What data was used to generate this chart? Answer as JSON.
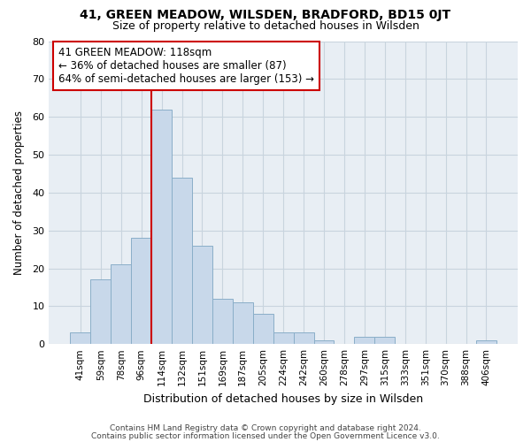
{
  "title1": "41, GREEN MEADOW, WILSDEN, BRADFORD, BD15 0JT",
  "title2": "Size of property relative to detached houses in Wilsden",
  "xlabel": "Distribution of detached houses by size in Wilsden",
  "ylabel": "Number of detached properties",
  "bin_labels": [
    "41sqm",
    "59sqm",
    "78sqm",
    "96sqm",
    "114sqm",
    "132sqm",
    "151sqm",
    "169sqm",
    "187sqm",
    "205sqm",
    "224sqm",
    "242sqm",
    "260sqm",
    "278sqm",
    "297sqm",
    "315sqm",
    "333sqm",
    "351sqm",
    "370sqm",
    "388sqm",
    "406sqm"
  ],
  "bar_values": [
    3,
    17,
    21,
    28,
    62,
    44,
    26,
    12,
    11,
    8,
    3,
    3,
    1,
    0,
    2,
    2,
    0,
    0,
    0,
    0,
    1
  ],
  "bar_color": "#c8d8ea",
  "bar_edge_color": "#8aaec8",
  "vline_x_index": 4,
  "vline_color": "#cc0000",
  "annotation_text": "41 GREEN MEADOW: 118sqm\n← 36% of detached houses are smaller (87)\n64% of semi-detached houses are larger (153) →",
  "annotation_box_color": "#ffffff",
  "annotation_box_edge": "#cc0000",
  "grid_color": "#c8d4de",
  "bg_color": "#e8eef4",
  "footer1": "Contains HM Land Registry data © Crown copyright and database right 2024.",
  "footer2": "Contains public sector information licensed under the Open Government Licence v3.0.",
  "ylim": [
    0,
    80
  ],
  "yticks": [
    0,
    10,
    20,
    30,
    40,
    50,
    60,
    70,
    80
  ]
}
